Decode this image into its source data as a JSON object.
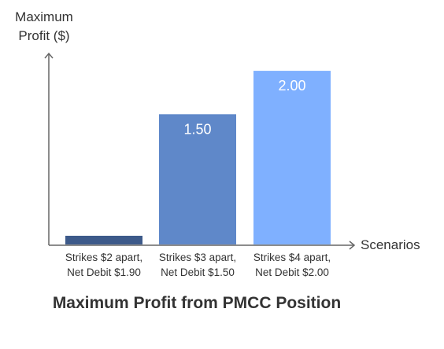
{
  "chart_data": {
    "type": "bar",
    "title": "Maximum Profit from PMCC Position",
    "ylabel": "Maximum\nProfit ($)",
    "xlabel": "Scenarios",
    "categories": [
      [
        "Strikes $2 apart,",
        "Net Debit $1.90"
      ],
      [
        "Strikes $3 apart,",
        "Net Debit $1.50"
      ],
      [
        "Strikes $4 apart,",
        "Net Debit $2.00"
      ]
    ],
    "values": [
      0.1,
      1.5,
      2.0
    ],
    "value_labels": [
      "",
      "1.50",
      "2.00"
    ],
    "ylim": [
      0,
      2.2
    ],
    "colors": [
      "#3d5a8a",
      "#5f88c9",
      "#7fb0ff"
    ],
    "grid": false,
    "legend": "none"
  }
}
